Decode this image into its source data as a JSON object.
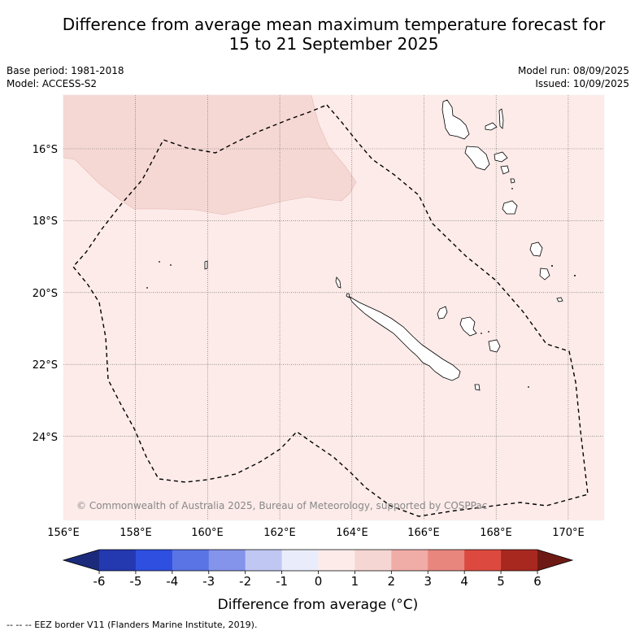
{
  "title_line1": "Difference from average mean maximum temperature forecast for",
  "title_line2": "15 to 21 September 2025",
  "meta_left": {
    "base_period": "Base period: 1981-2018",
    "model": "Model: ACCESS-S2"
  },
  "meta_right": {
    "model_run": "Model run: 08/09/2025",
    "issued": "Issued: 10/09/2025"
  },
  "copyright": "© Commonwealth of Australia 2025, Bureau of Meteorology, supported by COSPPac",
  "lat_labels": [
    "16°S",
    "18°S",
    "20°S",
    "22°S",
    "24°S"
  ],
  "lon_labels": [
    "156°E",
    "158°E",
    "160°E",
    "162°E",
    "164°E",
    "166°E",
    "168°E",
    "170°E"
  ],
  "colorbar": {
    "label": "Difference from average (°C)",
    "ticks": [
      "-6",
      "-5",
      "-4",
      "-3",
      "-2",
      "-1",
      "0",
      "1",
      "2",
      "3",
      "4",
      "5",
      "6"
    ],
    "colors": [
      "#1b2a7a",
      "#2438b0",
      "#2f4fe0",
      "#5a74e6",
      "#8494ea",
      "#c0c7f3",
      "#e9ecfa",
      "#fdebea",
      "#f5d6d3",
      "#f0aca7",
      "#e8867e",
      "#dc4a3f",
      "#a8281f",
      "#6e1a14"
    ]
  },
  "legend_note": "--  --  -- EEZ border V11 (Flanders Marine Institute, 2019).",
  "colors": {
    "bin_0_1": "#fcebe9",
    "bin_1_2": "#f5d8d4"
  }
}
